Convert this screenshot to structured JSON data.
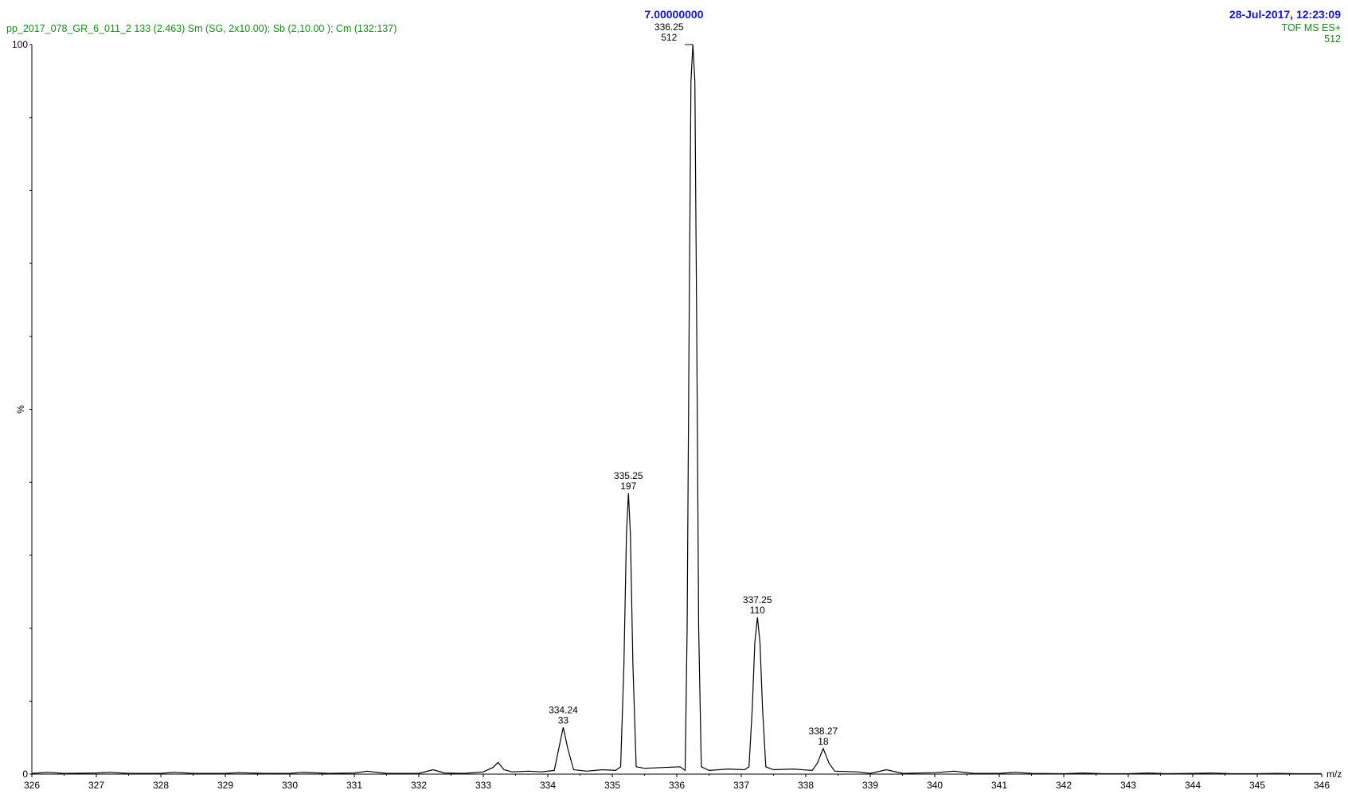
{
  "header": {
    "sample_line": "pp_2017_078_GR_6_011_2  133 (2.463) Sm (SG, 2x10.00); Sb (2,10.00 ); Cm (132:137)",
    "center_title": "7.00000000",
    "timestamp": "28-Jul-2017,  12:23:09",
    "mode": "TOF MS ES+",
    "max_intensity": "512"
  },
  "chart_data": {
    "type": "line",
    "xlabel": "m/z",
    "ylabel": "%",
    "xlim": [
      326,
      346
    ],
    "ylim": [
      0,
      100
    ],
    "x_ticks": [
      326,
      327,
      328,
      329,
      330,
      331,
      332,
      333,
      334,
      335,
      336,
      337,
      338,
      339,
      340,
      341,
      342,
      343,
      344,
      345,
      346
    ],
    "y_tick_labels": [
      {
        "value": 100,
        "label": "100"
      },
      {
        "value": 0,
        "label": "0"
      }
    ],
    "series": [
      {
        "color": "#000000",
        "points": [
          [
            326.0,
            0.1
          ],
          [
            326.25,
            0.25
          ],
          [
            326.5,
            0.1
          ],
          [
            327.0,
            0.15
          ],
          [
            327.2,
            0.25
          ],
          [
            327.5,
            0.1
          ],
          [
            328.0,
            0.1
          ],
          [
            328.2,
            0.25
          ],
          [
            328.5,
            0.1
          ],
          [
            329.0,
            0.1
          ],
          [
            329.2,
            0.2
          ],
          [
            329.6,
            0.1
          ],
          [
            330.0,
            0.1
          ],
          [
            330.2,
            0.25
          ],
          [
            330.6,
            0.1
          ],
          [
            331.0,
            0.15
          ],
          [
            331.2,
            0.4
          ],
          [
            331.5,
            0.1
          ],
          [
            332.0,
            0.1
          ],
          [
            332.22,
            0.6
          ],
          [
            332.4,
            0.15
          ],
          [
            332.7,
            0.1
          ],
          [
            333.0,
            0.3
          ],
          [
            333.15,
            0.9
          ],
          [
            333.23,
            1.6
          ],
          [
            333.32,
            0.6
          ],
          [
            333.45,
            0.3
          ],
          [
            333.7,
            0.4
          ],
          [
            333.9,
            0.3
          ],
          [
            334.1,
            0.5
          ],
          [
            334.17,
            3.5
          ],
          [
            334.24,
            6.4
          ],
          [
            334.31,
            3.5
          ],
          [
            334.4,
            0.6
          ],
          [
            334.6,
            0.4
          ],
          [
            334.85,
            0.6
          ],
          [
            335.05,
            0.5
          ],
          [
            335.13,
            1.0
          ],
          [
            335.18,
            15.0
          ],
          [
            335.22,
            33.0
          ],
          [
            335.25,
            38.5
          ],
          [
            335.28,
            33.0
          ],
          [
            335.32,
            15.0
          ],
          [
            335.37,
            1.0
          ],
          [
            335.5,
            0.8
          ],
          [
            335.8,
            0.9
          ],
          [
            336.05,
            1.0
          ],
          [
            336.13,
            0.5
          ],
          [
            336.16,
            20.0
          ],
          [
            336.19,
            60.0
          ],
          [
            336.22,
            95.0
          ],
          [
            336.25,
            100.0
          ],
          [
            336.28,
            95.0
          ],
          [
            336.31,
            60.0
          ],
          [
            336.34,
            20.0
          ],
          [
            336.38,
            1.0
          ],
          [
            336.5,
            0.5
          ],
          [
            336.8,
            0.7
          ],
          [
            337.05,
            0.6
          ],
          [
            337.12,
            1.0
          ],
          [
            337.17,
            9.0
          ],
          [
            337.21,
            18.0
          ],
          [
            337.25,
            21.5
          ],
          [
            337.29,
            18.0
          ],
          [
            337.33,
            9.0
          ],
          [
            337.38,
            1.0
          ],
          [
            337.5,
            0.6
          ],
          [
            337.8,
            0.7
          ],
          [
            338.1,
            0.5
          ],
          [
            338.18,
            1.5
          ],
          [
            338.27,
            3.5
          ],
          [
            338.36,
            1.5
          ],
          [
            338.45,
            0.4
          ],
          [
            338.8,
            0.3
          ],
          [
            339.0,
            0.1
          ],
          [
            339.25,
            0.6
          ],
          [
            339.5,
            0.1
          ],
          [
            340.0,
            0.2
          ],
          [
            340.3,
            0.4
          ],
          [
            340.6,
            0.1
          ],
          [
            341.0,
            0.1
          ],
          [
            341.25,
            0.25
          ],
          [
            341.5,
            0.1
          ],
          [
            342.0,
            0.05
          ],
          [
            342.3,
            0.15
          ],
          [
            342.6,
            0.05
          ],
          [
            343.0,
            0.05
          ],
          [
            343.3,
            0.15
          ],
          [
            343.6,
            0.05
          ],
          [
            344.0,
            0.1
          ],
          [
            344.3,
            0.15
          ],
          [
            344.6,
            0.05
          ],
          [
            345.0,
            0.05
          ],
          [
            345.3,
            0.1
          ],
          [
            345.6,
            0.05
          ],
          [
            346.0,
            0.05
          ]
        ]
      }
    ],
    "peak_labels": [
      {
        "mz": 334.24,
        "percent": 6.4,
        "mz_label": "334.24",
        "intensity_label": "33"
      },
      {
        "mz": 335.25,
        "percent": 38.5,
        "mz_label": "335.25",
        "intensity_label": "197"
      },
      {
        "mz": 336.25,
        "percent": 100,
        "mz_label": "336.25",
        "intensity_label": "512"
      },
      {
        "mz": 337.25,
        "percent": 21.5,
        "mz_label": "337.25",
        "intensity_label": "110"
      },
      {
        "mz": 338.27,
        "percent": 3.5,
        "mz_label": "338.27",
        "intensity_label": "18"
      }
    ],
    "grid": false,
    "legend": "none"
  }
}
